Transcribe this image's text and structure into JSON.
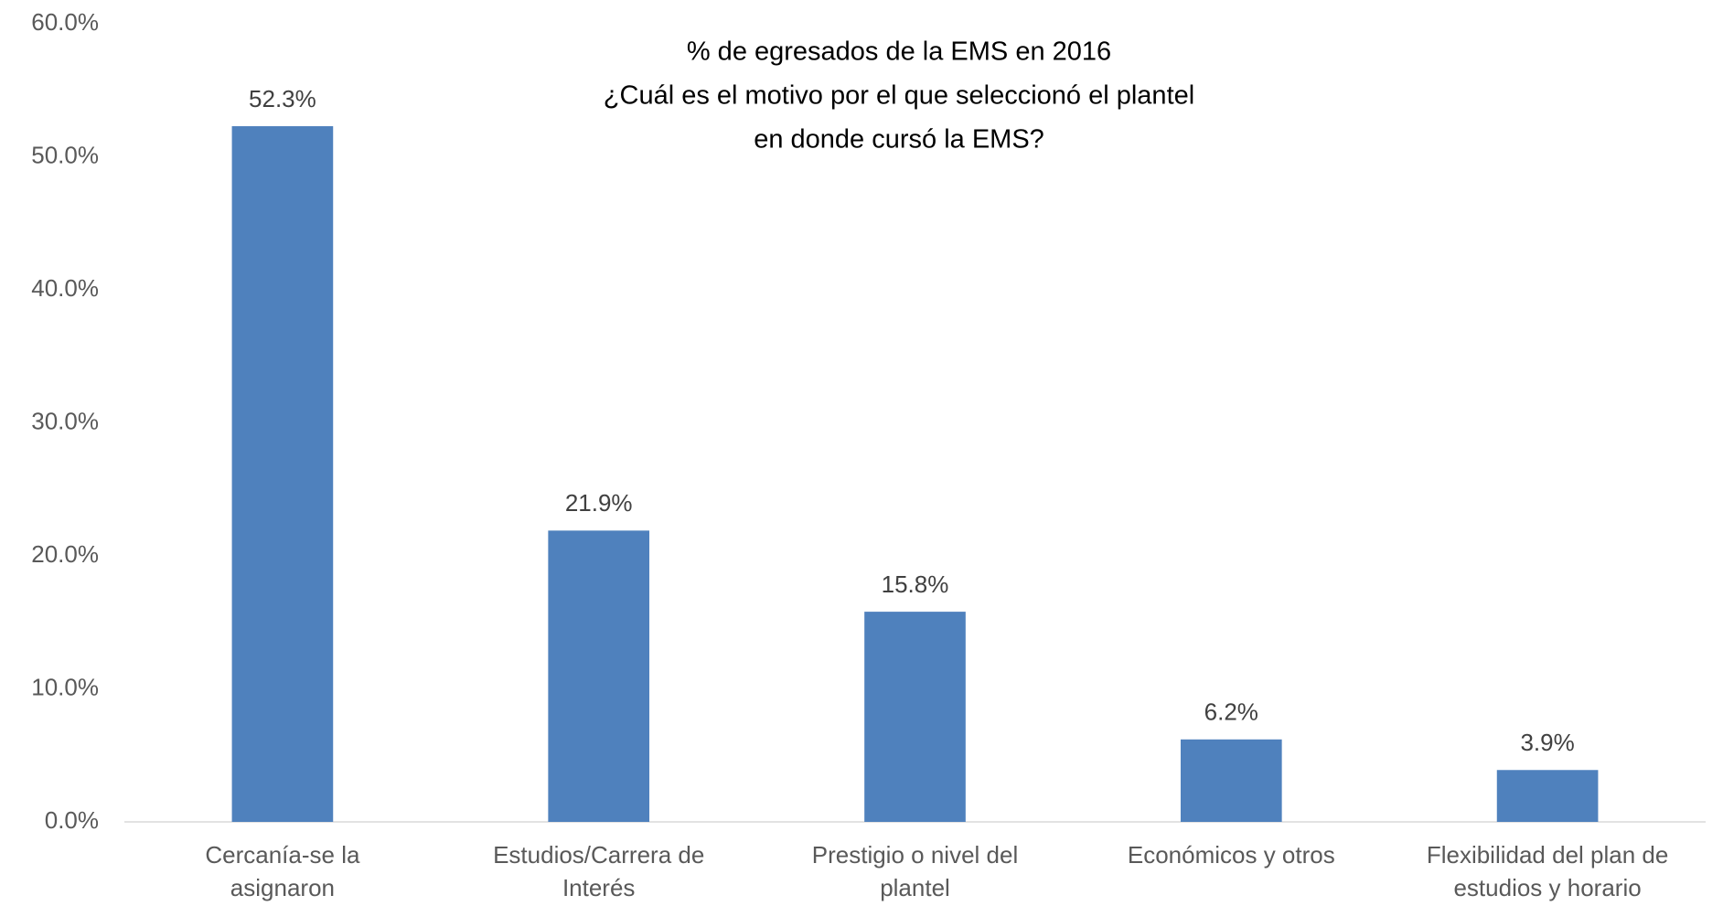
{
  "chart_data": {
    "type": "bar",
    "title": [
      "% de egresados de la EMS en 2016",
      "¿Cuál es el motivo por el que seleccionó el plantel",
      "en donde cursó la EMS?"
    ],
    "categories": [
      [
        "Cercanía-se la",
        "asignaron"
      ],
      [
        "Estudios/Carrera de",
        "Interés"
      ],
      [
        "Prestigio o nivel del",
        "plantel"
      ],
      [
        "Económicos y otros"
      ],
      [
        "Flexibilidad del plan de",
        "estudios y horario"
      ]
    ],
    "values": [
      52.3,
      21.9,
      15.8,
      6.2,
      3.9
    ],
    "value_labels": [
      "52.3%",
      "21.9%",
      "15.8%",
      "6.2%",
      "3.9%"
    ],
    "color": "#4f81bd",
    "ylim": [
      0,
      60
    ],
    "yticks": [
      {
        "value": 0,
        "label": "0.0%"
      },
      {
        "value": 10,
        "label": "10.0%"
      },
      {
        "value": 20,
        "label": "20.0%"
      },
      {
        "value": 30,
        "label": "30.0%"
      },
      {
        "value": 40,
        "label": "40.0%"
      },
      {
        "value": 50,
        "label": "50.0%"
      },
      {
        "value": 60,
        "label": "60.0%"
      }
    ],
    "grid": false
  }
}
